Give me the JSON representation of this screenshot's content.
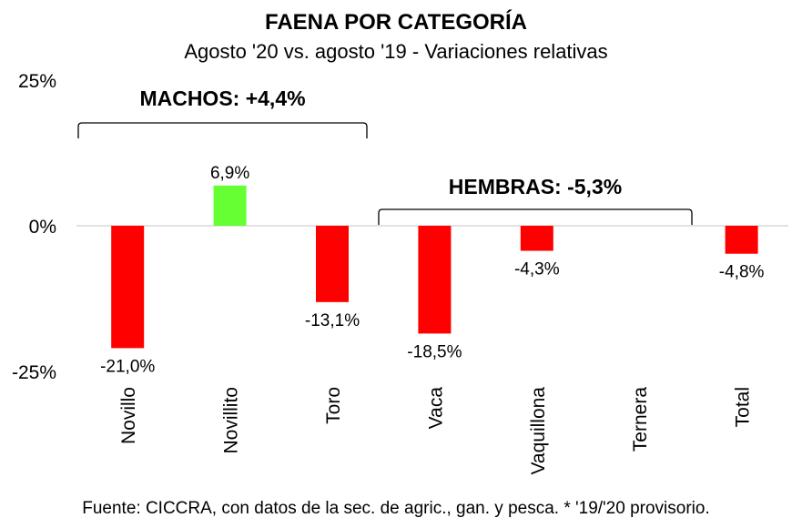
{
  "chart_data": {
    "type": "bar",
    "title": "FAENA POR CATEGORÍA",
    "subtitle": "Agosto '20 vs. agosto '19 - Variaciones relativas",
    "categories": [
      "Novillo",
      "Novillito",
      "Toro",
      "Vaca",
      "Vaquillona",
      "Ternera",
      "Total"
    ],
    "values": [
      -21.0,
      6.9,
      -13.1,
      -18.5,
      -4.3,
      null,
      -4.8
    ],
    "value_labels": [
      "-21,0%",
      "6,9%",
      "-13,1%",
      "-18,5%",
      "-4,3%",
      "",
      "-4,8%"
    ],
    "ylim": [
      -25,
      25
    ],
    "yticks": [
      25,
      0,
      -25
    ],
    "ytick_labels": [
      "25%",
      "0%",
      "-25%"
    ],
    "xlabel": "",
    "ylabel": "",
    "colors": {
      "positive": "#66ff33",
      "negative": "#ff0000"
    },
    "groups": [
      {
        "label": "MACHOS: +4,4%",
        "from": 0,
        "to": 2
      },
      {
        "label": "HEMBRAS: -5,3%",
        "from": 3,
        "to": 5
      }
    ],
    "source": "Fuente: CICCRA, con datos de la sec. de agric., gan. y pesca. * '19/'20 provisorio."
  }
}
